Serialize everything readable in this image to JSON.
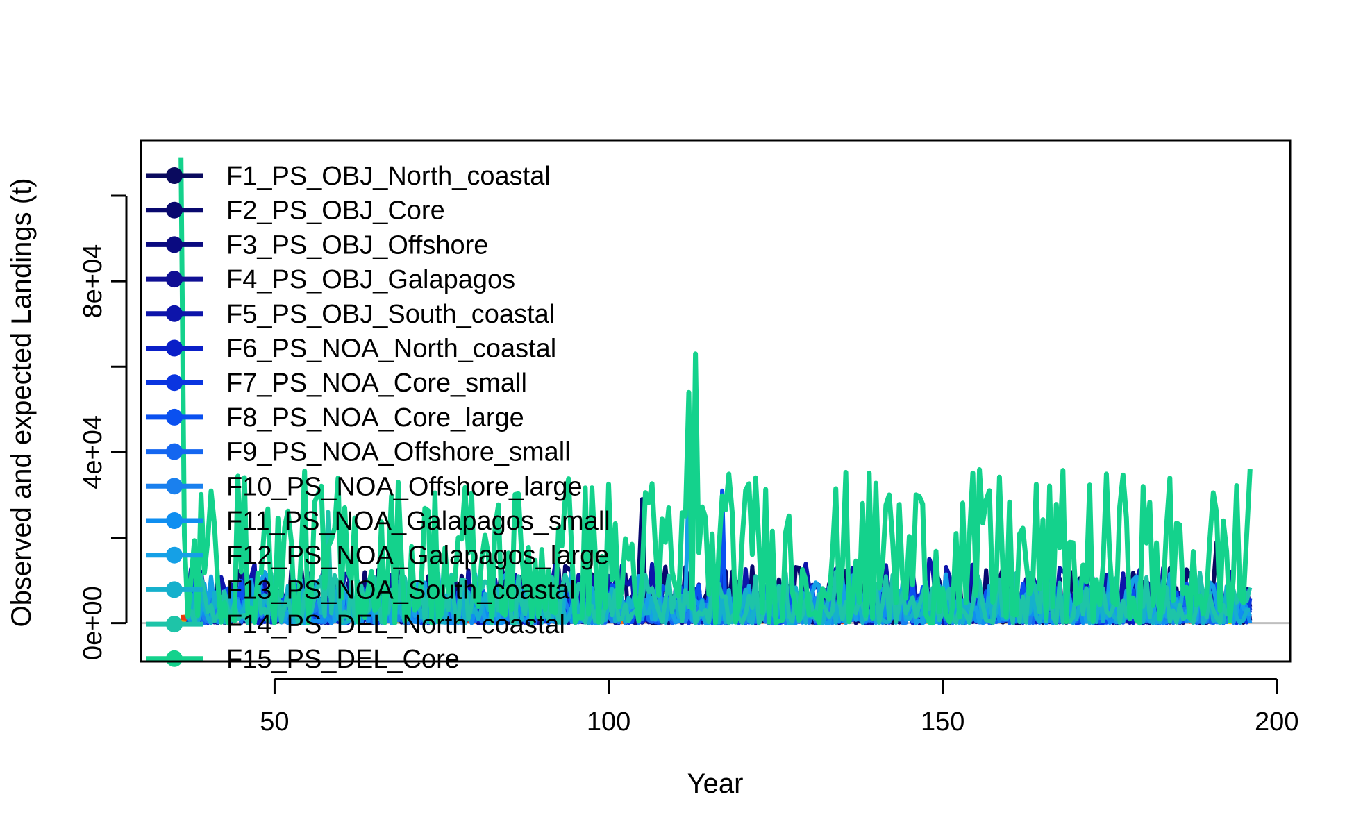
{
  "chart_data": {
    "type": "line",
    "title": "",
    "xlabel": "Year",
    "ylabel": "Observed and expected Landings (t)",
    "xlim": [
      30,
      202
    ],
    "ylim": [
      -9000,
      113000
    ],
    "x_ticks": [
      50,
      100,
      150,
      200
    ],
    "x_tick_labels": [
      "50",
      "100",
      "150",
      "200"
    ],
    "y_ticks": [
      0,
      20000,
      40000,
      60000,
      80000,
      100000
    ],
    "y_tick_labels": [
      "0e+00",
      "",
      "4e+04",
      "",
      "8e+04",
      ""
    ],
    "grid": false,
    "legend_position": "top-left",
    "reference_line": {
      "y": 0,
      "color": "#bfbfbf"
    },
    "series": [
      {
        "name": "F1_PS_OBJ_North_coastal",
        "color": "#0a0a5e",
        "x_start": 37,
        "x_end": 196,
        "max": 9000,
        "peaks": [
          [
            105,
            28000
          ],
          [
            191,
            19000
          ],
          [
            191,
            18500
          ]
        ]
      },
      {
        "name": "F2_PS_OBJ_Core",
        "color": "#08086e",
        "x_start": 37,
        "x_end": 196,
        "max": 14000,
        "peaks": [
          [
            105,
            29000
          ],
          [
            145,
            15000
          ]
        ]
      },
      {
        "name": "F3_PS_OBJ_Offshore",
        "color": "#0a0a80",
        "x_start": 37,
        "x_end": 196,
        "max": 8000,
        "peaks": []
      },
      {
        "name": "F4_PS_OBJ_Galapagos",
        "color": "#0f0f94",
        "x_start": 37,
        "x_end": 196,
        "max": 6000,
        "peaks": []
      },
      {
        "name": "F5_PS_OBJ_South_coastal",
        "color": "#0d14aa",
        "x_start": 37,
        "x_end": 196,
        "max": 14000,
        "peaks": [
          [
            148,
            15000
          ]
        ]
      },
      {
        "name": "F6_PS_NOA_North_coastal",
        "color": "#0a1fc8",
        "x_start": 37,
        "x_end": 196,
        "max": 8000,
        "peaks": []
      },
      {
        "name": "F7_PS_NOA_Core_small",
        "color": "#0a35e0",
        "x_start": 37,
        "x_end": 196,
        "max": 6000,
        "peaks": []
      },
      {
        "name": "F8_PS_NOA_Core_large",
        "color": "#0a50f0",
        "x_start": 37,
        "x_end": 196,
        "max": 10000,
        "peaks": [
          [
            117,
            31000
          ]
        ]
      },
      {
        "name": "F9_PS_NOA_Offshore_small",
        "color": "#1466f0",
        "x_start": 37,
        "x_end": 196,
        "max": 6000,
        "peaks": []
      },
      {
        "name": "F10_PS_NOA_Offshore_large",
        "color": "#1a80ee",
        "x_start": 37,
        "x_end": 196,
        "max": 6000,
        "peaks": []
      },
      {
        "name": "F11_PS_NOA_Galapagos_small",
        "color": "#0f8ef0",
        "x_start": 37,
        "x_end": 196,
        "max": 6000,
        "peaks": []
      },
      {
        "name": "F12_PS_NOA_Galapagos_large",
        "color": "#15a0e6",
        "x_start": 37,
        "x_end": 196,
        "max": 12000,
        "peaks": [
          [
            112,
            35000
          ]
        ]
      },
      {
        "name": "F13_PS_NOA_South_coastal",
        "color": "#15b0cc",
        "x_start": 37,
        "x_end": 196,
        "max": 9000,
        "peaks": []
      },
      {
        "name": "F14_PS_DEL_North_coastal",
        "color": "#1ec4a8",
        "x_start": 37,
        "x_end": 196,
        "max": 12000,
        "peaks": [
          [
            58,
            26000
          ]
        ]
      },
      {
        "name": "F15_PS_DEL_Core",
        "color": "#14d28c",
        "x_start": 36,
        "x_end": 196,
        "max": 36000,
        "peaks": [
          [
            36,
            109000
          ],
          [
            113,
            63000
          ],
          [
            112,
            54000
          ],
          [
            122,
            34000
          ],
          [
            138,
            28000
          ],
          [
            142,
            30000
          ],
          [
            146,
            30000
          ],
          [
            157,
            31000
          ],
          [
            196,
            36000
          ]
        ]
      }
    ],
    "hidden_series_colors": [
      "#e5e000",
      "#f0a000",
      "#f07010",
      "#ec3a10"
    ]
  }
}
